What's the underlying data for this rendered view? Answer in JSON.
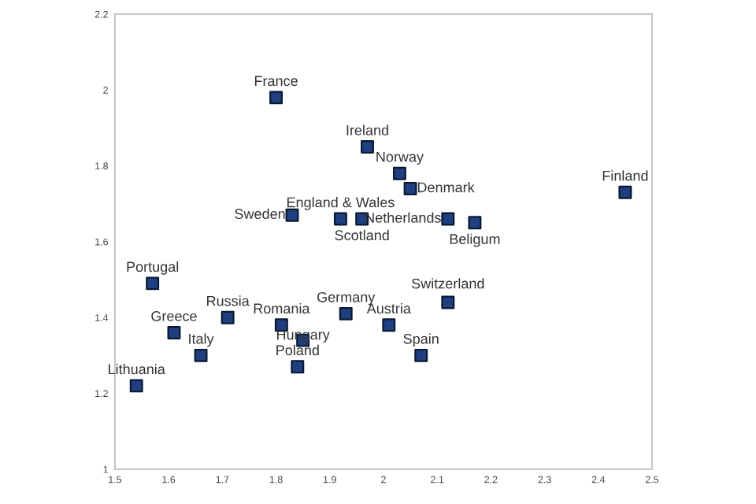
{
  "chart_data": {
    "type": "scatter",
    "marker": "square",
    "grid": false,
    "x": [
      1.8,
      1.97,
      2.03,
      2.05,
      1.83,
      1.92,
      1.96,
      2.12,
      2.17,
      2.45,
      1.57,
      1.71,
      1.61,
      1.66,
      1.54,
      1.81,
      1.85,
      1.84,
      1.93,
      2.01,
      2.12,
      2.07
    ],
    "series": [
      {
        "color": "#1f3f80",
        "values": [
          1.98,
          1.85,
          1.78,
          1.74,
          1.67,
          1.66,
          1.66,
          1.66,
          1.65,
          1.73,
          1.49,
          1.4,
          1.36,
          1.3,
          1.22,
          1.38,
          1.34,
          1.27,
          1.41,
          1.38,
          1.44,
          1.3
        ]
      }
    ],
    "annotations": [
      {
        "text": "France",
        "x": 1.8,
        "y": 1.98
      },
      {
        "text": "Ireland",
        "x": 1.97,
        "y": 1.85
      },
      {
        "text": "Norway",
        "x": 2.03,
        "y": 1.78
      },
      {
        "text": "Denmark",
        "x": 2.05,
        "y": 1.74
      },
      {
        "text": "Sweden",
        "x": 1.83,
        "y": 1.67
      },
      {
        "text": "England & Wales",
        "x": 1.92,
        "y": 1.66
      },
      {
        "text": "Scotland",
        "x": 1.96,
        "y": 1.66
      },
      {
        "text": "Netherlands",
        "x": 2.12,
        "y": 1.66
      },
      {
        "text": "Beligum",
        "x": 2.17,
        "y": 1.65
      },
      {
        "text": "Finland",
        "x": 2.45,
        "y": 1.73
      },
      {
        "text": "Portugal",
        "x": 1.57,
        "y": 1.49
      },
      {
        "text": "Russia",
        "x": 1.71,
        "y": 1.4
      },
      {
        "text": "Greece",
        "x": 1.61,
        "y": 1.36
      },
      {
        "text": "Italy",
        "x": 1.66,
        "y": 1.3
      },
      {
        "text": "Lithuania",
        "x": 1.54,
        "y": 1.22
      },
      {
        "text": "Romania",
        "x": 1.81,
        "y": 1.38
      },
      {
        "text": "Hungary",
        "x": 1.85,
        "y": 1.34
      },
      {
        "text": "Poland",
        "x": 1.84,
        "y": 1.27
      },
      {
        "text": "Germany",
        "x": 1.93,
        "y": 1.41
      },
      {
        "text": "Austria",
        "x": 2.01,
        "y": 1.38
      },
      {
        "text": "Switzerland",
        "x": 2.12,
        "y": 1.44
      },
      {
        "text": "Spain",
        "x": 2.07,
        "y": 1.3
      }
    ],
    "xlim": [
      1.5,
      2.5
    ],
    "xticks": [
      1.5,
      1.6,
      1.7,
      1.8,
      1.9,
      2,
      2.1,
      2.2,
      2.3,
      2.4,
      2.5
    ],
    "ylim": [
      1,
      2.2
    ],
    "yticks": [
      1,
      1.2,
      1.4,
      1.6,
      1.8,
      2,
      2.2
    ]
  }
}
